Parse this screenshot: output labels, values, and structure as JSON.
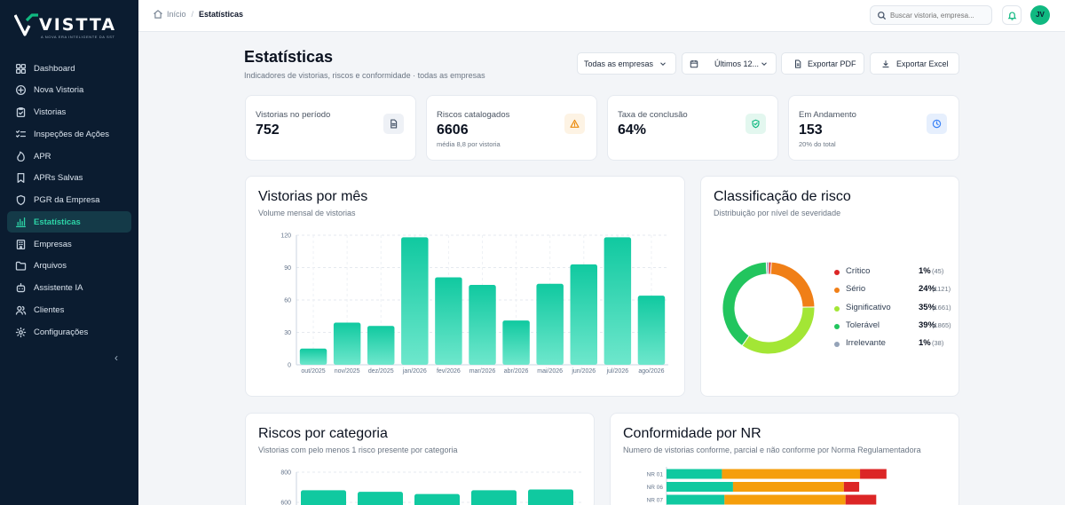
{
  "brand": {
    "name": "VISTTA",
    "tagline": "A NOVA ERA INTELIGENTE DA SST"
  },
  "nav": {
    "items": [
      {
        "label": "Dashboard",
        "icon": "grid-icon",
        "active": false
      },
      {
        "label": "Nova Vistoria",
        "icon": "plus-circle-icon",
        "active": false
      },
      {
        "label": "Vistorias",
        "icon": "clipboard-check-icon",
        "active": false
      },
      {
        "label": "Inspeções de Ações",
        "icon": "list-check-icon",
        "active": false
      },
      {
        "label": "APR",
        "icon": "flame-icon",
        "active": false
      },
      {
        "label": "APRs Salvas",
        "icon": "bookmark-icon",
        "active": false
      },
      {
        "label": "PGR da Empresa",
        "icon": "shield-icon",
        "active": false
      },
      {
        "label": "Estatísticas",
        "icon": "bar-chart-icon",
        "active": true
      },
      {
        "label": "Empresas",
        "icon": "building-icon",
        "active": false
      },
      {
        "label": "Arquivos",
        "icon": "folder-icon",
        "active": false
      },
      {
        "label": "Assistente IA",
        "icon": "bot-icon",
        "active": false
      },
      {
        "label": "Clientes",
        "icon": "users-icon",
        "active": false
      },
      {
        "label": "Configurações",
        "icon": "gear-icon",
        "active": false
      }
    ],
    "collapse_glyph": "‹"
  },
  "topbar": {
    "breadcrumb_home": "Início",
    "breadcrumb_sep": "/",
    "breadcrumb_current": "Estatísticas",
    "search_placeholder": "Buscar vistoria, empresa...",
    "avatar_initials": "JV"
  },
  "header": {
    "title": "Estatísticas",
    "subtitle": "Indicadores de vistorias, riscos e conformidade · todas as empresas",
    "company_filter": "Todas as empresas",
    "period_filter": "Últimos 12...",
    "export_pdf": "Exportar PDF",
    "export_excel": "Exportar Excel"
  },
  "stats": [
    {
      "label": "Vistorias no período",
      "value": "752",
      "note": "",
      "icon": "document-icon",
      "color": "#475569",
      "bg": "#eef1f6"
    },
    {
      "label": "Riscos catalogados",
      "value": "6606",
      "note": "média 8,8 por vistoria",
      "icon": "warning-icon",
      "color": "#ea8a0c",
      "bg": "#fdf3e4"
    },
    {
      "label": "Taxa de conclusão",
      "value": "64%",
      "note": "",
      "icon": "shield-check-icon",
      "color": "#10b981",
      "bg": "#e3f7ef"
    },
    {
      "label": "Em Andamento",
      "value": "153",
      "note": "20% do total",
      "icon": "clock-icon",
      "color": "#3b82f6",
      "bg": "#e6effd"
    }
  ],
  "monthly": {
    "title": "Vistorias por mês",
    "subtitle": "Volume mensal de vistorias"
  },
  "risk_class": {
    "title": "Classificação de risco",
    "subtitle": "Distribuição por nível de severidade"
  },
  "categories": {
    "title": "Riscos por categoria",
    "subtitle": "Vistorias com pelo menos 1 risco presente por categoria"
  },
  "nr": {
    "title": "Conformidade por NR",
    "subtitle": "Numero de vistorias conforme, parcial e não conforme por Norma Regulamentadora"
  },
  "colors": {
    "accent": "#10b981",
    "sidebar": "#0b1c30",
    "active_text": "#2dd4a7"
  },
  "chart_data": [
    {
      "type": "bar",
      "title": "Vistorias por mês",
      "categories": [
        "out/2025",
        "nov/2025",
        "dez/2025",
        "jan/2026",
        "fev/2026",
        "mar/2026",
        "abr/2026",
        "mai/2026",
        "jun/2026",
        "jul/2026",
        "ago/2026"
      ],
      "values": [
        15,
        39,
        36,
        118,
        81,
        74,
        41,
        75,
        93,
        118,
        64
      ],
      "yticks": [
        0,
        30,
        60,
        90,
        120
      ],
      "ylim": [
        0,
        120
      ],
      "grid": true,
      "color": "#10c9a0"
    },
    {
      "type": "pie",
      "title": "Classificação de risco",
      "donut": true,
      "slices": [
        {
          "name": "Crítico",
          "pct": "1%",
          "count": "(45)",
          "value": 45,
          "color": "#dc2626"
        },
        {
          "name": "Sério",
          "pct": "24%",
          "count": "(1121)",
          "value": 1121,
          "color": "#f07f17"
        },
        {
          "name": "Significativo",
          "pct": "35%",
          "count": "(1661)",
          "value": 1661,
          "color": "#a3e635"
        },
        {
          "name": "Tolerável",
          "pct": "39%",
          "count": "(1865)",
          "value": 1865,
          "color": "#22c55e"
        },
        {
          "name": "Irrelevante",
          "pct": "1%",
          "count": "(38)",
          "value": 38,
          "color": "#94a3b8"
        }
      ],
      "legend_position": "right"
    },
    {
      "type": "bar",
      "title": "Riscos por categoria",
      "yticks": [
        600,
        800
      ],
      "values": [
        680,
        670,
        655,
        680,
        685
      ],
      "ylim": [
        0,
        800
      ],
      "grid": true,
      "color": "#10c9a0"
    },
    {
      "type": "bar",
      "title": "Conformidade por NR",
      "orientation": "horizontal",
      "stacked": true,
      "categories": [
        "NR 01",
        "NR 06",
        "NR 07"
      ],
      "series": [
        {
          "values": [
            65,
            78,
            68
          ],
          "color": "#10c9a0"
        },
        {
          "values": [
            162,
            130,
            142
          ],
          "color": "#f59e0b"
        },
        {
          "values": [
            31,
            18,
            36
          ],
          "color": "#dc2626"
        }
      ],
      "xlim": [
        0,
        330
      ]
    }
  ]
}
